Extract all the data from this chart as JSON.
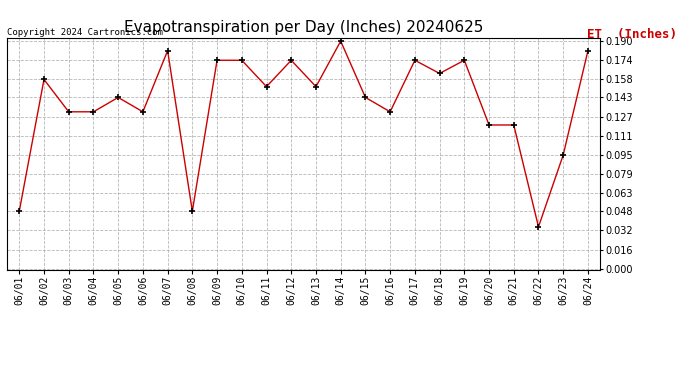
{
  "title": "Evapotranspiration per Day (Inches) 20240625",
  "copyright": "Copyright 2024 Cartronics.com",
  "legend_label": "ET  (Inches)",
  "dates": [
    "06/01",
    "06/02",
    "06/03",
    "06/04",
    "06/05",
    "06/06",
    "06/07",
    "06/08",
    "06/09",
    "06/10",
    "06/11",
    "06/12",
    "06/13",
    "06/14",
    "06/15",
    "06/16",
    "06/17",
    "06/18",
    "06/19",
    "06/20",
    "06/21",
    "06/22",
    "06/23",
    "06/24"
  ],
  "values": [
    0.048,
    0.158,
    0.131,
    0.131,
    0.143,
    0.131,
    0.182,
    0.048,
    0.174,
    0.174,
    0.152,
    0.174,
    0.152,
    0.19,
    0.143,
    0.131,
    0.174,
    0.163,
    0.174,
    0.12,
    0.12,
    0.035,
    0.095,
    0.182
  ],
  "ylim": [
    -0.001,
    0.193
  ],
  "yticks": [
    0.0,
    0.016,
    0.032,
    0.048,
    0.063,
    0.079,
    0.095,
    0.111,
    0.127,
    0.143,
    0.158,
    0.174,
    0.19
  ],
  "line_color": "#cc0000",
  "marker_color": "#000000",
  "marker": "+",
  "bg_color": "#ffffff",
  "grid_color": "#999999",
  "title_fontsize": 11,
  "tick_fontsize": 7,
  "legend_color": "#cc0000",
  "legend_fontsize": 9,
  "copyright_color": "#000000",
  "copyright_fontsize": 6.5
}
